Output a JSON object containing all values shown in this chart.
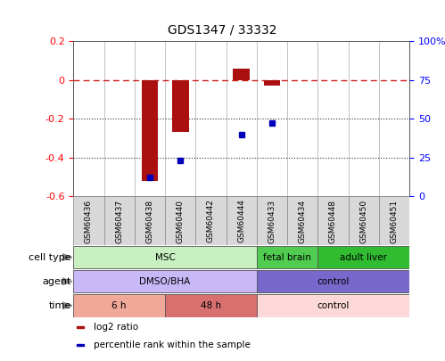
{
  "title": "GDS1347 / 33332",
  "samples": [
    "GSM60436",
    "GSM60437",
    "GSM60438",
    "GSM60440",
    "GSM60442",
    "GSM60444",
    "GSM60433",
    "GSM60434",
    "GSM60448",
    "GSM60450",
    "GSM60451"
  ],
  "log2_ratio": [
    0.0,
    0.0,
    -0.52,
    -0.27,
    0.0,
    0.06,
    -0.03,
    0.0,
    0.0,
    0.0,
    0.0
  ],
  "percentile_rank": [
    null,
    null,
    12,
    23,
    null,
    40,
    47,
    null,
    null,
    null,
    null
  ],
  "ylim": [
    -0.6,
    0.2
  ],
  "yticks_left": [
    -0.6,
    -0.4,
    -0.2,
    0.0,
    0.2
  ],
  "ytick_labels_left": [
    "-0.6",
    "-0.4",
    "-0.2",
    "0",
    "0.2"
  ],
  "pct_ticks": [
    0,
    25,
    50,
    75,
    100
  ],
  "pct_tick_labels": [
    "0",
    "25",
    "50",
    "75",
    "100%"
  ],
  "cell_type_groups": [
    {
      "label": "MSC",
      "start": 0,
      "end": 6,
      "color": "#c8f0c0"
    },
    {
      "label": "fetal brain",
      "start": 6,
      "end": 8,
      "color": "#50cc50"
    },
    {
      "label": "adult liver",
      "start": 8,
      "end": 11,
      "color": "#30bb30"
    }
  ],
  "agent_groups": [
    {
      "label": "DMSO/BHA",
      "start": 0,
      "end": 6,
      "color": "#c8b8f8"
    },
    {
      "label": "control",
      "start": 6,
      "end": 11,
      "color": "#7868cc"
    }
  ],
  "time_groups": [
    {
      "label": "6 h",
      "start": 0,
      "end": 3,
      "color": "#f0a898"
    },
    {
      "label": "48 h",
      "start": 3,
      "end": 6,
      "color": "#d87070"
    },
    {
      "label": "control",
      "start": 6,
      "end": 11,
      "color": "#fcd8d8"
    }
  ],
  "bar_color": "#aa1010",
  "dot_color": "#0000bb",
  "ref_line_color": "#cc2020",
  "dotted_color": "#333333",
  "bg_color": "#ffffff",
  "row_labels": [
    "cell type",
    "agent",
    "time"
  ],
  "legend_items": [
    {
      "color": "#aa1010",
      "label": "log2 ratio"
    },
    {
      "color": "#0000bb",
      "label": "percentile rank within the sample"
    }
  ]
}
